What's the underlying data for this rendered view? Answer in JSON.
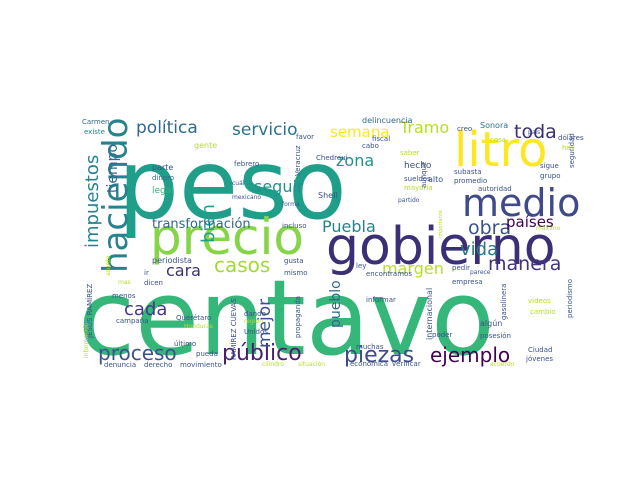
{
  "palette": {
    "dark_purple": "#440154",
    "indigo": "#414487",
    "blue": "#31688e",
    "teal": "#26828e",
    "green_teal": "#1f9e89",
    "green": "#35b779",
    "lime": "#6ece58",
    "light_green": "#b5de2b",
    "yellow": "#fde725"
  },
  "words": [
    {
      "text": "centavo",
      "color": "#35b779"
    },
    {
      "text": "peso",
      "color": "#1f9e89"
    },
    {
      "text": "gobierno",
      "color": "#3b2f75"
    },
    {
      "text": "precio",
      "color": "#86d549"
    },
    {
      "text": "litro",
      "color": "#fde725"
    },
    {
      "text": "medio",
      "color": "#3e4a89"
    },
    {
      "text": "haciendo",
      "color": "#26828e"
    },
    {
      "text": "impuestos",
      "color": "#26828e"
    },
    {
      "text": "tiempo",
      "color": "#31688e"
    },
    {
      "text": "proceso",
      "color": "#3b528b"
    },
    {
      "text": "público",
      "color": "#481f70"
    },
    {
      "text": "piezas",
      "color": "#3e4a89"
    },
    {
      "text": "ejemplo",
      "color": "#440154"
    },
    {
      "text": "política",
      "color": "#31688e"
    },
    {
      "text": "servicio",
      "color": "#2c728e"
    },
    {
      "text": "semana",
      "color": "#fde725"
    },
    {
      "text": "Tramo",
      "color": "#b5de2b"
    },
    {
      "text": "toda",
      "color": "#3b2f75"
    },
    {
      "text": "zona",
      "color": "#21918c"
    },
    {
      "text": "obra",
      "color": "#3b528b"
    },
    {
      "text": "vida",
      "color": "#2a788e"
    },
    {
      "text": "países",
      "color": "#440154"
    },
    {
      "text": "manera",
      "color": "#46327e"
    },
    {
      "text": "margen",
      "color": "#b5de2b"
    },
    {
      "text": "Puebla",
      "color": "#26828e"
    },
    {
      "text": "casos",
      "color": "#a0da39"
    },
    {
      "text": "cara",
      "color": "#3b2f75"
    },
    {
      "text": "cada",
      "color": "#443983"
    },
    {
      "text": "bien",
      "color": "#1f9e89"
    },
    {
      "text": "seguir",
      "color": "#21918c"
    },
    {
      "text": "transformación",
      "color": "#31688e"
    },
    {
      "text": "mejor",
      "color": "#3b528b"
    },
    {
      "text": "pueblo",
      "color": "#31688e"
    },
    {
      "text": "hecho",
      "color": "#3b528b"
    },
    {
      "text": "Sonora",
      "color": "#2c728e"
    },
    {
      "text": "creo",
      "color": "#3b528b"
    },
    {
      "text": "delincuencia",
      "color": "#31688e"
    },
    {
      "text": "Carmen",
      "color": "#31688e"
    },
    {
      "text": "existe",
      "color": "#26828e"
    },
    {
      "text": "gente",
      "color": "#b5de2b"
    },
    {
      "text": "parte",
      "color": "#3b528b"
    },
    {
      "text": "dinero",
      "color": "#31688e"
    },
    {
      "text": "legal",
      "color": "#35b779"
    },
    {
      "text": "febrero",
      "color": "#3b528b"
    },
    {
      "text": "cuál",
      "color": "#3b528b"
    },
    {
      "text": "mexicano",
      "color": "#3b528b"
    },
    {
      "text": "Veracruz",
      "color": "#3b528b"
    },
    {
      "text": "Chedraui",
      "color": "#3b528b"
    },
    {
      "text": "sueldos",
      "color": "#3b528b"
    },
    {
      "text": "subasta",
      "color": "#3b528b"
    },
    {
      "text": "promedio",
      "color": "#3b528b"
    },
    {
      "text": "alto",
      "color": "#3b528b"
    },
    {
      "text": "mayoría",
      "color": "#b5de2b"
    },
    {
      "text": "autoridad",
      "color": "#3b528b"
    },
    {
      "text": "grupo",
      "color": "#3b528b"
    },
    {
      "text": "Shell",
      "color": "#3b528b"
    },
    {
      "text": "forma",
      "color": "#3b528b"
    },
    {
      "text": "incluso",
      "color": "#3b528b"
    },
    {
      "text": "partido",
      "color": "#3b528b"
    },
    {
      "text": "máximo",
      "color": "#b5de2b"
    },
    {
      "text": "periodista",
      "color": "#3b528b"
    },
    {
      "text": "gusta",
      "color": "#3b528b"
    },
    {
      "text": "mismo",
      "color": "#3b528b"
    },
    {
      "text": "ley",
      "color": "#3b528b"
    },
    {
      "text": "encontramos",
      "color": "#3b528b"
    },
    {
      "text": "pedir",
      "color": "#3b528b"
    },
    {
      "text": "parece",
      "color": "#3b528b"
    },
    {
      "text": "ir",
      "color": "#3b528b"
    },
    {
      "text": "dicen",
      "color": "#3b528b"
    },
    {
      "text": "menos",
      "color": "#3b528b"
    },
    {
      "text": "Querétaro",
      "color": "#3b528b"
    },
    {
      "text": "dando",
      "color": "#3b528b"
    },
    {
      "text": "Honduras",
      "color": "#b5de2b"
    },
    {
      "text": "región",
      "color": "#b5de2b"
    },
    {
      "text": "campaña",
      "color": "#3b528b"
    },
    {
      "text": "Unidos",
      "color": "#3b528b"
    },
    {
      "text": "propaganda",
      "color": "#3b528b"
    },
    {
      "text": "informar",
      "color": "#3b528b"
    },
    {
      "text": "internacional",
      "color": "#3b528b"
    },
    {
      "text": "poder",
      "color": "#3b528b"
    },
    {
      "text": "algún",
      "color": "#3b528b"
    },
    {
      "text": "posesión",
      "color": "#3b528b"
    },
    {
      "text": "Ciudad",
      "color": "#3b528b"
    },
    {
      "text": "jóvenes",
      "color": "#3b528b"
    },
    {
      "text": "acuerdo",
      "color": "#b5de2b"
    },
    {
      "text": "último",
      "color": "#3b528b"
    },
    {
      "text": "pueda",
      "color": "#3b528b"
    },
    {
      "text": "denuncia",
      "color": "#3b528b"
    },
    {
      "text": "derecho",
      "color": "#3b528b"
    },
    {
      "text": "movimiento",
      "color": "#3b528b"
    },
    {
      "text": "cilindro",
      "color": "#b5de2b"
    },
    {
      "text": "situación",
      "color": "#b5de2b"
    },
    {
      "text": "económica",
      "color": "#3b528b"
    },
    {
      "text": "verificar",
      "color": "#3b528b"
    },
    {
      "text": "muchas",
      "color": "#3b528b"
    },
    {
      "text": "videos",
      "color": "#b5de2b"
    },
    {
      "text": "cambio",
      "color": "#b5de2b"
    },
    {
      "text": "periodismo",
      "color": "#3b528b"
    },
    {
      "text": "gasolinera",
      "color": "#3b528b"
    },
    {
      "text": "empresa",
      "color": "#3b528b"
    },
    {
      "text": "aunque",
      "color": "#3b528b"
    },
    {
      "text": "importante",
      "color": "#b5de2b"
    },
    {
      "text": "seguridad",
      "color": "#3b528b"
    },
    {
      "text": "sigue",
      "color": "#3b528b"
    },
    {
      "text": "cosa",
      "color": "#b5de2b"
    },
    {
      "text": "fiscal",
      "color": "#3b528b"
    },
    {
      "text": "favor",
      "color": "#3b528b"
    },
    {
      "text": "cabo",
      "color": "#3b528b"
    },
    {
      "text": "saber",
      "color": "#b5de2b"
    },
    {
      "text": "dólares",
      "color": "#3b528b"
    },
    {
      "text": "hoy",
      "color": "#b5de2b"
    },
    {
      "text": "país",
      "color": "#3b528b"
    },
    {
      "text": "JESÚS RAMÍREZ",
      "color": "#3b528b"
    },
    {
      "text": "RAMÍREZ CUEVAS",
      "color": "#3b528b"
    },
    {
      "text": "información",
      "color": "#b5de2b"
    },
    {
      "text": "asunto",
      "color": "#b5de2b"
    },
    {
      "text": "mas",
      "color": "#b5de2b"
    }
  ]
}
